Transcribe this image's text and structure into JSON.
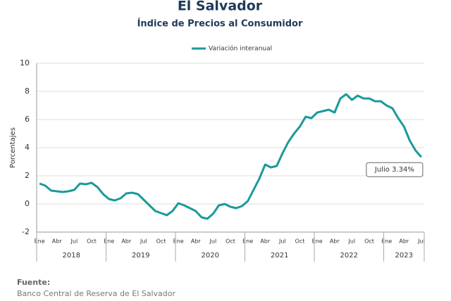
{
  "chart_data": {
    "type": "line",
    "title": "El Salvador",
    "subtitle": "Índice de Precios al Consumidor",
    "y_label": "Porcentajes",
    "categories": [
      "Ene",
      null,
      null,
      "Abr",
      null,
      null,
      "Jul",
      null,
      null,
      "Oct",
      null,
      null,
      "Ene",
      null,
      null,
      "Abr",
      null,
      null,
      "Jul",
      null,
      null,
      "Oct",
      null,
      null,
      "Ene",
      null,
      null,
      "Abr",
      null,
      null,
      "Jul",
      null,
      null,
      "Oct",
      null,
      null,
      "Ene",
      null,
      null,
      "Abr",
      null,
      null,
      "Jul",
      null,
      null,
      "Oct",
      null,
      null,
      "Ene",
      null,
      null,
      "Abr",
      null,
      null,
      "Jul",
      null,
      null,
      "Oct",
      null,
      null,
      "Ene",
      null,
      null,
      "Abr",
      null,
      null,
      "Jul"
    ],
    "years": [
      "2018",
      "2019",
      "2020",
      "2021",
      "2022",
      "2023"
    ],
    "series": [
      {
        "name": "Variación interanual",
        "color": "#1a9a9a",
        "values": [
          1.45,
          1.3,
          0.95,
          0.9,
          0.85,
          0.9,
          1.0,
          1.45,
          1.4,
          1.5,
          1.2,
          0.7,
          0.35,
          0.25,
          0.4,
          0.75,
          0.8,
          0.7,
          0.3,
          -0.1,
          -0.5,
          -0.65,
          -0.8,
          -0.5,
          0.05,
          -0.1,
          -0.3,
          -0.5,
          -0.95,
          -1.05,
          -0.7,
          -0.1,
          0.0,
          -0.2,
          -0.3,
          -0.15,
          0.2,
          1.0,
          1.8,
          2.8,
          2.6,
          2.7,
          3.6,
          4.4,
          5.0,
          5.5,
          6.2,
          6.1,
          6.5,
          6.6,
          6.7,
          6.5,
          7.5,
          7.8,
          7.4,
          7.7,
          7.5,
          7.5,
          7.3,
          7.3,
          7.0,
          6.8,
          6.1,
          5.5,
          4.5,
          3.8,
          3.34
        ]
      }
    ],
    "annotation": "Julio 3.34%",
    "ylim": [
      -2,
      10
    ],
    "yticks": [
      -2,
      0,
      2,
      4,
      6,
      8,
      10
    ],
    "grid": true,
    "legend": "top",
    "source_label": "Fuente:",
    "source": "Banco Central de Reserva de El Salvador"
  }
}
